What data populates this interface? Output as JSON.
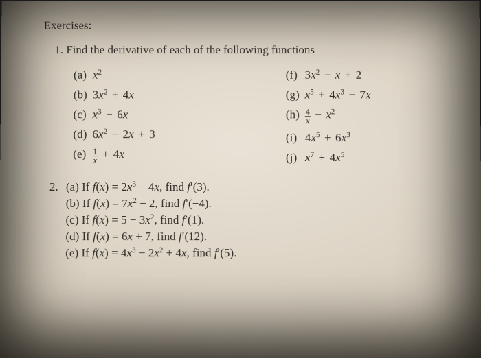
{
  "page": {
    "background_gradient": [
      "#e9e2d6",
      "#d8cfbf",
      "#b6ab97",
      "#6e6454"
    ],
    "text_color": "#2f2b25",
    "font_family": "Times New Roman",
    "base_font_size_pt": 12
  },
  "header": "Exercises:",
  "q1": {
    "number": "1.",
    "prompt": "Find the derivative of each of the following functions",
    "left": [
      {
        "label": "(a)",
        "expr_html": "<span class='math'>x</span><sup>2</sup>"
      },
      {
        "label": "(b)",
        "expr_html": "<span class='rm'>3</span><span class='math'>x</span><sup>2</sup> <span class='op'>+</span> <span class='rm'>4</span><span class='math'>x</span>"
      },
      {
        "label": "(c)",
        "expr_html": "<span class='math'>x</span><sup>3</sup> <span class='op'>−</span> <span class='rm'>6</span><span class='math'>x</span>"
      },
      {
        "label": "(d)",
        "expr_html": "<span class='rm'>6</span><span class='math'>x</span><sup>2</sup> <span class='op'>−</span> <span class='rm'>2</span><span class='math'>x</span> <span class='op'>+</span> <span class='rm'>3</span>"
      },
      {
        "label": "(e)",
        "expr_html": "<span class='frac'><span class='n'>1</span><span class='d math'>x</span></span> <span class='op'>+</span> <span class='rm'>4</span><span class='math'>x</span>"
      }
    ],
    "right": [
      {
        "label": "(f)",
        "expr_html": "<span class='rm'>3</span><span class='math'>x</span><sup>2</sup> <span class='op'>−</span> <span class='math'>x</span> <span class='op'>+</span> <span class='rm'>2</span>"
      },
      {
        "label": "(g)",
        "expr_html": "<span class='math'>x</span><sup>5</sup> <span class='op'>+</span> <span class='rm'>4</span><span class='math'>x</span><sup>3</sup> <span class='op'>−</span> <span class='rm'>7</span><span class='math'>x</span>"
      },
      {
        "label": "(h)",
        "expr_html": "<span class='frac'><span class='n'>4</span><span class='d math'>x</span></span> <span class='op'>−</span> <span class='math'>x</span><sup>2</sup>"
      },
      {
        "label": "(i)",
        "expr_html": "<span class='rm'>4</span><span class='math'>x</span><sup>5</sup> <span class='op'>+</span> <span class='rm'>6</span><span class='math'>x</span><sup>3</sup>"
      },
      {
        "label": "(j)",
        "expr_html": "<span class='math'>x</span><sup>7</sup> <span class='op'>+</span> <span class='rm'>4</span><span class='math'>x</span><sup>5</sup>"
      }
    ]
  },
  "q2": {
    "number": "2.",
    "items": [
      {
        "label": "(a)",
        "line_html": "If <span class='math'>f</span>(<span class='math'>x</span>) = 2<span class='math'>x</span><sup>3</sup> − 4<span class='math'>x</span>, find <span class='math'>f</span><span class='rm'>′</span>(3)."
      },
      {
        "label": "(b)",
        "line_html": "If <span class='math'>f</span>(<span class='math'>x</span>) = 7<span class='math'>x</span><sup>2</sup> − 2, find <span class='math'>f</span><span class='rm'>′</span>(−4)."
      },
      {
        "label": "(c)",
        "line_html": "If <span class='math'>f</span>(<span class='math'>x</span>) = 5 − 3<span class='math'>x</span><sup>2</sup>, find <span class='math'>f</span><span class='rm'>′</span>(1)."
      },
      {
        "label": "(d)",
        "line_html": "If <span class='math'>f</span>(<span class='math'>x</span>) = 6<span class='math'>x</span> + 7, find <span class='math'>f</span><span class='rm'>′</span>(12)."
      },
      {
        "label": "(e)",
        "line_html": "If <span class='math'>f</span>(<span class='math'>x</span>) = 4<span class='math'>x</span><sup>3</sup> − 2<span class='math'>x</span><sup>2</sup> + 4<span class='math'>x</span>, find <span class='math'>f</span><span class='rm'>′</span>(5)."
      }
    ]
  }
}
